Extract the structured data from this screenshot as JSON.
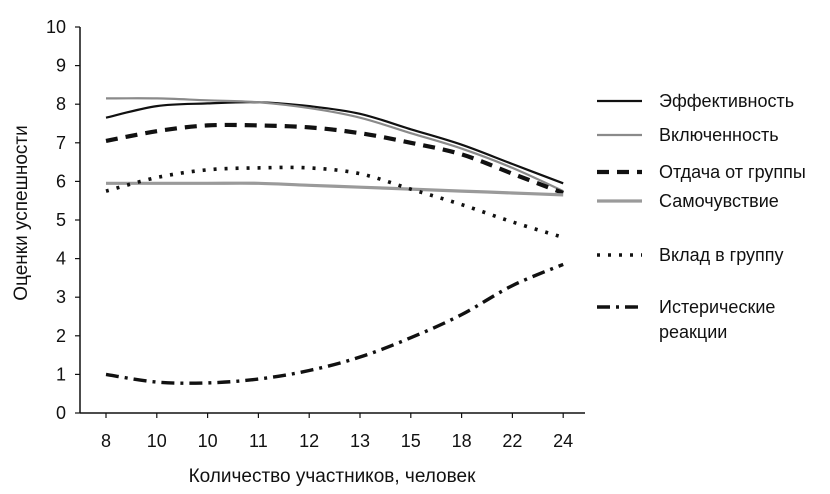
{
  "chart_data": {
    "type": "line",
    "xlabel": "Количество участников, человек",
    "ylabel": "Оценки успешности",
    "categories": [
      "8",
      "10",
      "10",
      "11",
      "12",
      "13",
      "15",
      "18",
      "22",
      "24"
    ],
    "ylim": [
      0,
      10
    ],
    "yticks": [
      "0",
      "1",
      "2",
      "3",
      "4",
      "5",
      "6",
      "7",
      "8",
      "9",
      "10"
    ],
    "grid": false,
    "legend_position": "right",
    "series": [
      {
        "name": "Эффективность",
        "style": "solid",
        "color": "#111111",
        "values": [
          7.65,
          7.95,
          8.02,
          8.05,
          7.95,
          7.75,
          7.35,
          6.95,
          6.45,
          5.95
        ]
      },
      {
        "name": "Включенность",
        "style": "solid",
        "color": "#8a8a8a",
        "values": [
          8.15,
          8.15,
          8.1,
          8.05,
          7.9,
          7.65,
          7.25,
          6.85,
          6.35,
          5.75
        ]
      },
      {
        "name": "Отдача от группы",
        "style": "dashed",
        "color": "#111111",
        "values": [
          7.05,
          7.3,
          7.45,
          7.45,
          7.4,
          7.25,
          7.0,
          6.7,
          6.2,
          5.7
        ]
      },
      {
        "name": "Самочувствие",
        "style": "thick",
        "color": "#9a9a9a",
        "values": [
          5.95,
          5.95,
          5.95,
          5.95,
          5.9,
          5.85,
          5.8,
          5.75,
          5.7,
          5.65
        ]
      },
      {
        "name": "Вклад в группу",
        "style": "dotted",
        "color": "#111111",
        "values": [
          5.75,
          6.1,
          6.3,
          6.35,
          6.35,
          6.2,
          5.8,
          5.4,
          4.95,
          4.55
        ]
      },
      {
        "name": "Истерические реакции",
        "style": "dashdot",
        "color": "#111111",
        "values": [
          1.0,
          0.8,
          0.78,
          0.88,
          1.1,
          1.45,
          1.95,
          2.55,
          3.3,
          3.85
        ]
      }
    ]
  }
}
